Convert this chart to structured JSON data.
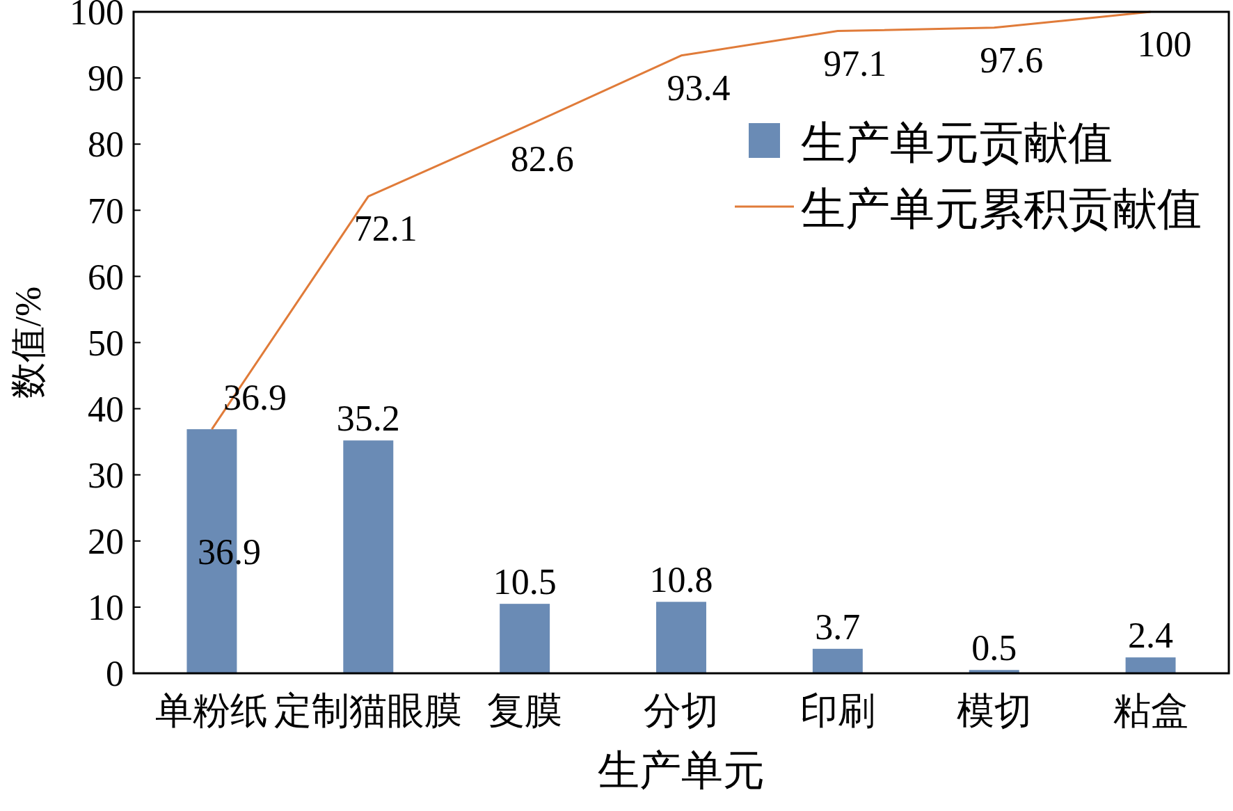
{
  "chart_data": {
    "type": "bar",
    "xlabel": "生产单元",
    "ylabel": "数值/%",
    "categories": [
      "单粉纸",
      "定制猫眼膜",
      "复膜",
      "分切",
      "印刷",
      "模切",
      "粘盒"
    ],
    "series": [
      {
        "name": "生产单元贡献值",
        "color": "#6a8bb5",
        "values": [
          36.9,
          35.2,
          10.5,
          10.8,
          3.7,
          0.5,
          2.4
        ]
      },
      {
        "name": "生产单元累积贡献值",
        "type": "line",
        "color": "#e07b39",
        "values": [
          36.9,
          72.1,
          82.6,
          93.4,
          97.1,
          97.6,
          100
        ]
      }
    ],
    "ylim": [
      0,
      100
    ],
    "yticks": [
      0,
      10,
      20,
      30,
      40,
      50,
      60,
      70,
      80,
      90,
      100
    ],
    "data_labels": true,
    "legend": "top right",
    "grid": false
  }
}
